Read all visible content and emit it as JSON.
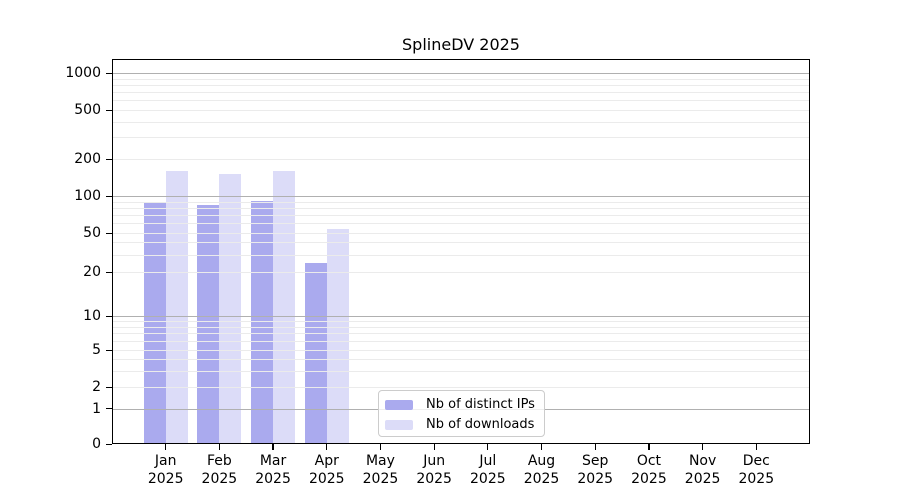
{
  "title": "SplineDV 2025",
  "chart_data": {
    "type": "bar",
    "title": "SplineDV 2025",
    "categories": [
      "Jan",
      "Feb",
      "Mar",
      "Apr",
      "May",
      "Jun",
      "Jul",
      "Aug",
      "Sep",
      "Oct",
      "Nov",
      "Dec"
    ],
    "category_year": "2025",
    "series": [
      {
        "name": "Nb of distinct IPs",
        "color": "#aaaaee",
        "values": [
          90,
          84,
          91,
          25,
          null,
          null,
          null,
          null,
          null,
          null,
          null,
          null
        ]
      },
      {
        "name": "Nb of downloads",
        "color": "#dcdcf8",
        "values": [
          160,
          152,
          160,
          54,
          null,
          null,
          null,
          null,
          null,
          null,
          null,
          null
        ]
      }
    ],
    "xlabel": "",
    "ylabel": "",
    "yticks": [
      0,
      1,
      2,
      5,
      10,
      20,
      50,
      100,
      200,
      500,
      1000
    ],
    "ylim": [
      0,
      1300
    ],
    "scale": "pseudo-log",
    "grid": true,
    "major_grid_values": [
      1,
      10,
      100,
      1000
    ],
    "minor_grid_values": [
      2,
      3,
      4,
      5,
      6,
      7,
      8,
      9,
      20,
      30,
      40,
      50,
      60,
      70,
      80,
      90,
      200,
      300,
      400,
      500,
      600,
      700,
      800,
      900
    ],
    "legend_position": "lower center inside"
  },
  "legend": {
    "items": [
      {
        "label": "Nb of distinct IPs",
        "color": "#aaaaee"
      },
      {
        "label": "Nb of downloads",
        "color": "#dcdcf8"
      }
    ]
  },
  "colors": {
    "axis": "#000000",
    "major_grid": "#b0b0b0",
    "minor_grid": "#ebebeb",
    "background": "#ffffff"
  }
}
